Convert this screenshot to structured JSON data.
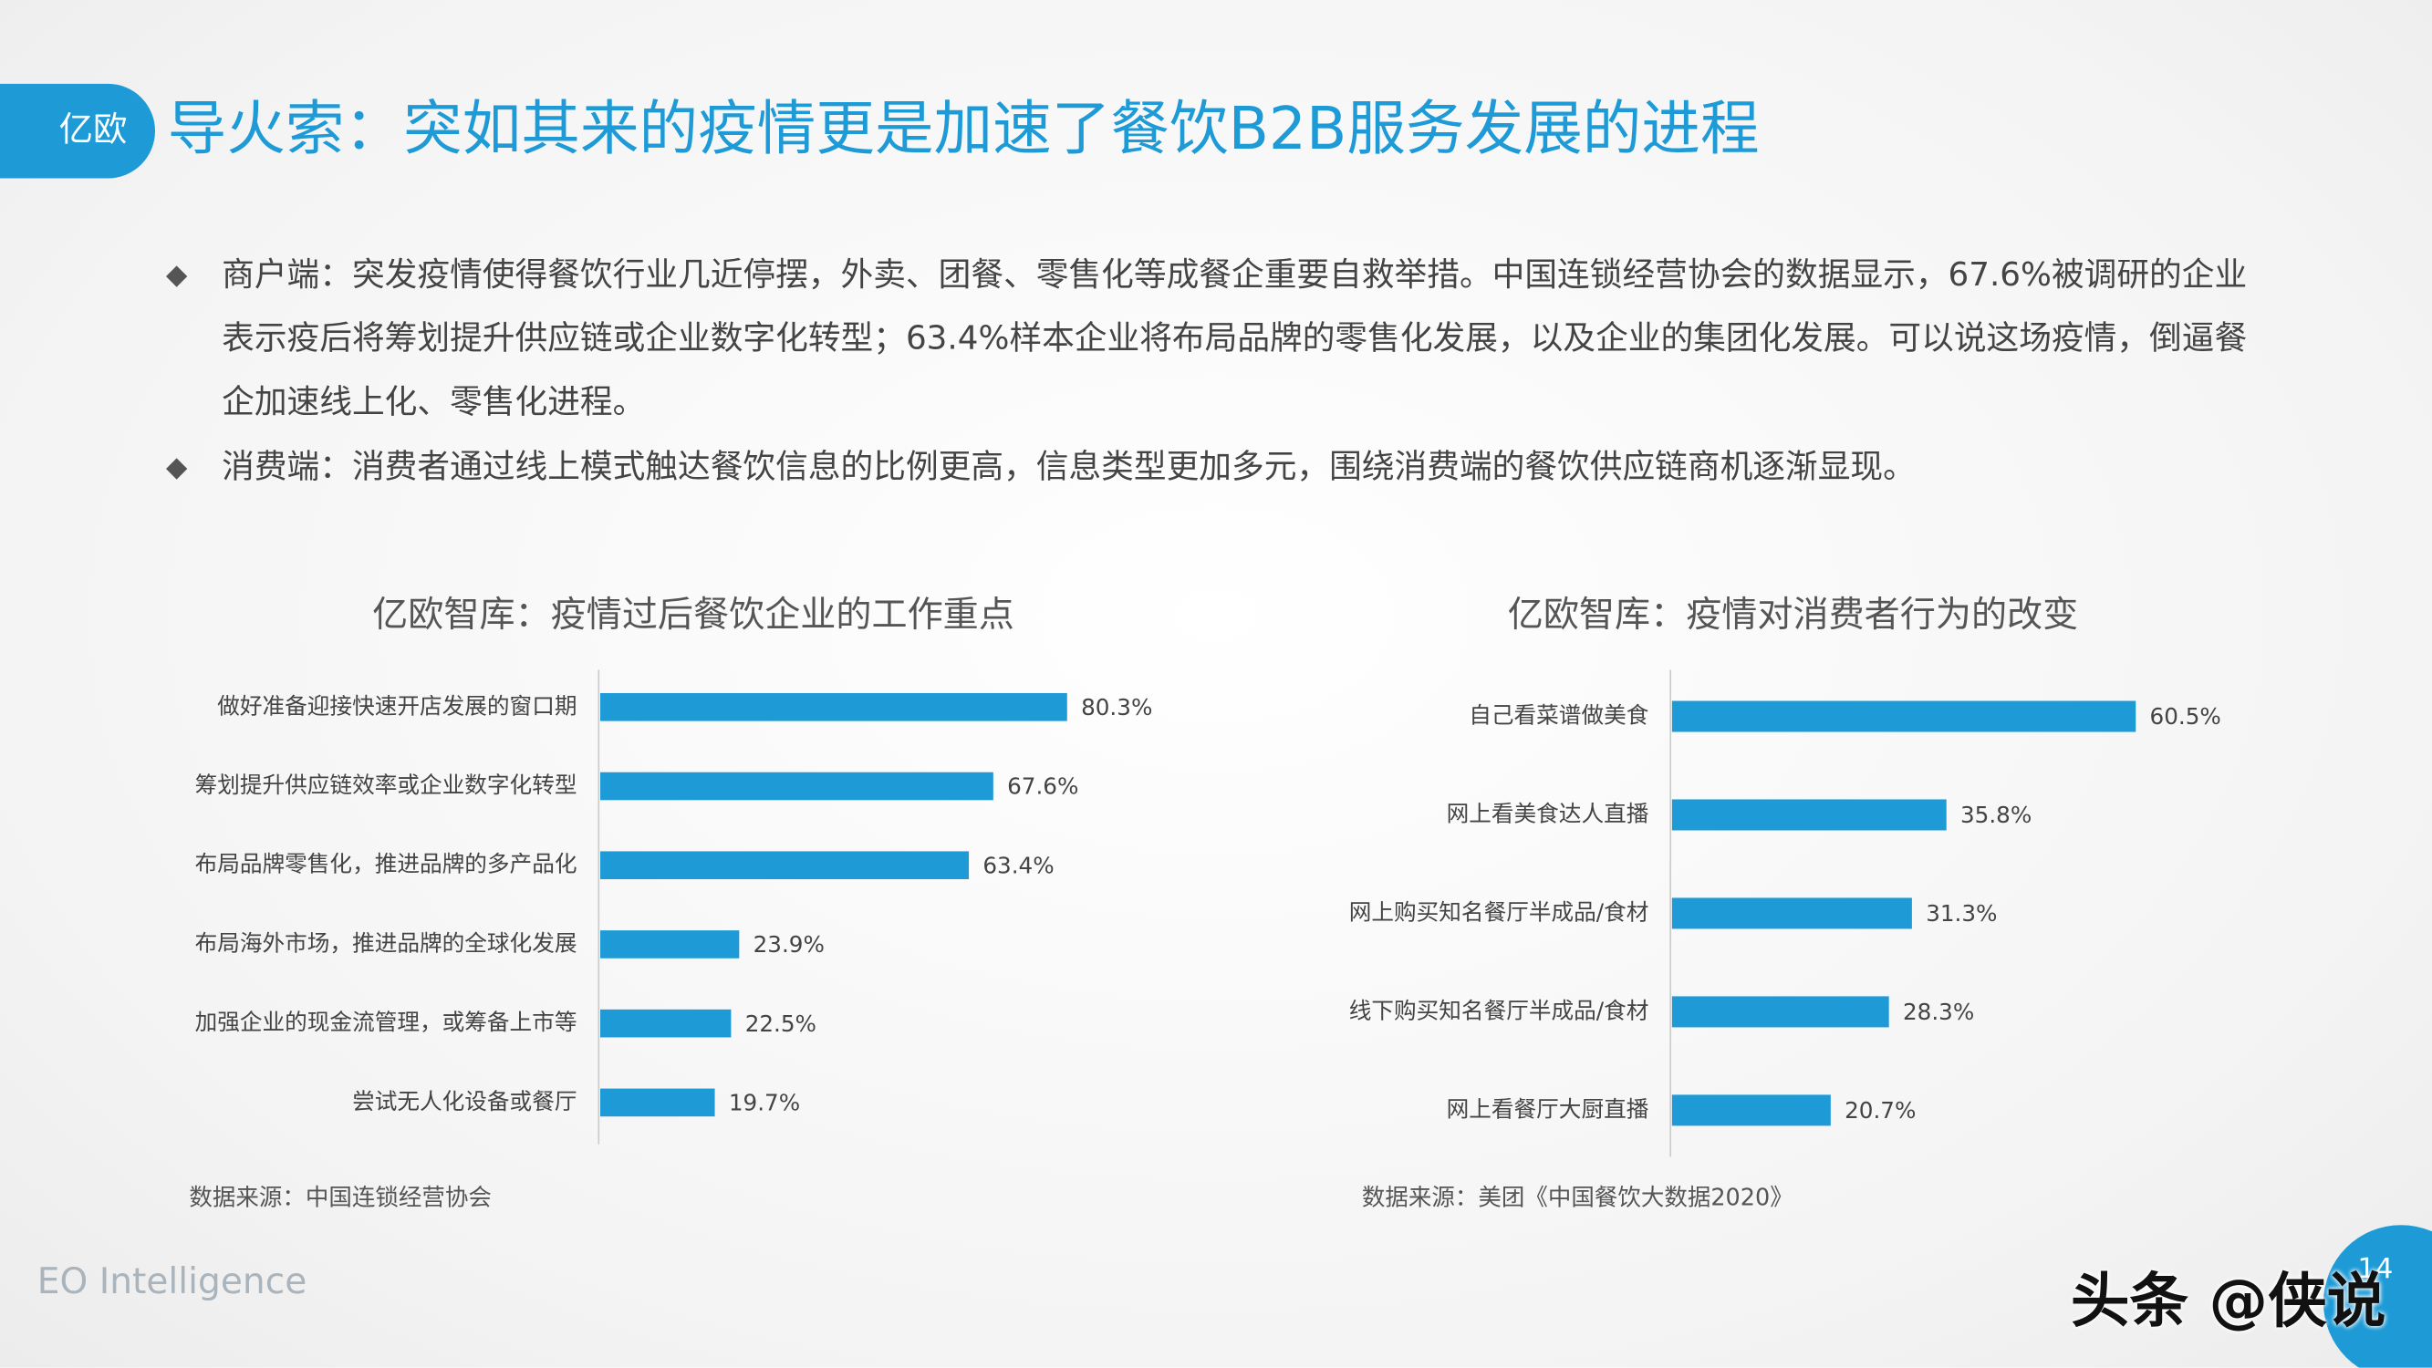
{
  "header": {
    "logo": "亿欧",
    "title": "导火索：突如其来的疫情更是加速了餐饮B2B服务发展的进程"
  },
  "bullets": [
    "商户端：突发疫情使得餐饮行业几近停摆，外卖、团餐、零售化等成餐企重要自救举措。中国连锁经营协会的数据显示，67.6%被调研的企业表示疫后将筹划提升供应链或企业数字化转型；63.4%样本企业将布局品牌的零售化发展，以及企业的集团化发展。可以说这场疫情，倒逼餐企加速线上化、零售化进程。",
    "消费端：消费者通过线上模式触达餐饮信息的比例更高，信息类型更加多元，围绕消费端的餐饮供应链商机逐渐显现。"
  ],
  "chart_data": [
    {
      "type": "bar",
      "orientation": "horizontal",
      "title": "亿欧智库：疫情过后餐饮企业的工作重点",
      "categories": [
        "做好准备迎接快速开店发展的窗口期",
        "筹划提升供应链效率或企业数字化转型",
        "布局品牌零售化，推进品牌的多产品化",
        "布局海外市场，推进品牌的全球化发展",
        "加强企业的现金流管理，或筹备上市等",
        "尝试无人化设备或餐厅"
      ],
      "values": [
        80.3,
        67.6,
        63.4,
        23.9,
        22.5,
        19.7
      ],
      "value_labels": [
        "80.3%",
        "67.6%",
        "63.4%",
        "23.9%",
        "22.5%",
        "19.7%"
      ],
      "color": "#1e9bd7",
      "source": "数据来源：中国连锁经营协会"
    },
    {
      "type": "bar",
      "orientation": "horizontal",
      "title": "亿欧智库：疫情对消费者行为的改变",
      "categories": [
        "自己看菜谱做美食",
        "网上看美食达人直播",
        "网上购买知名餐厅半成品/食材",
        "线下购买知名餐厅半成品/食材",
        "网上看餐厅大厨直播"
      ],
      "values": [
        60.5,
        35.8,
        31.3,
        28.3,
        20.7
      ],
      "value_labels": [
        "60.5%",
        "35.8%",
        "31.3%",
        "28.3%",
        "20.7%"
      ],
      "color": "#1e9bd7",
      "source": "数据来源：美团《中国餐饮大数据2020》"
    }
  ],
  "footer": {
    "brand": "EO Intelligence",
    "page": "14",
    "watermark": "头条 @侠说"
  }
}
